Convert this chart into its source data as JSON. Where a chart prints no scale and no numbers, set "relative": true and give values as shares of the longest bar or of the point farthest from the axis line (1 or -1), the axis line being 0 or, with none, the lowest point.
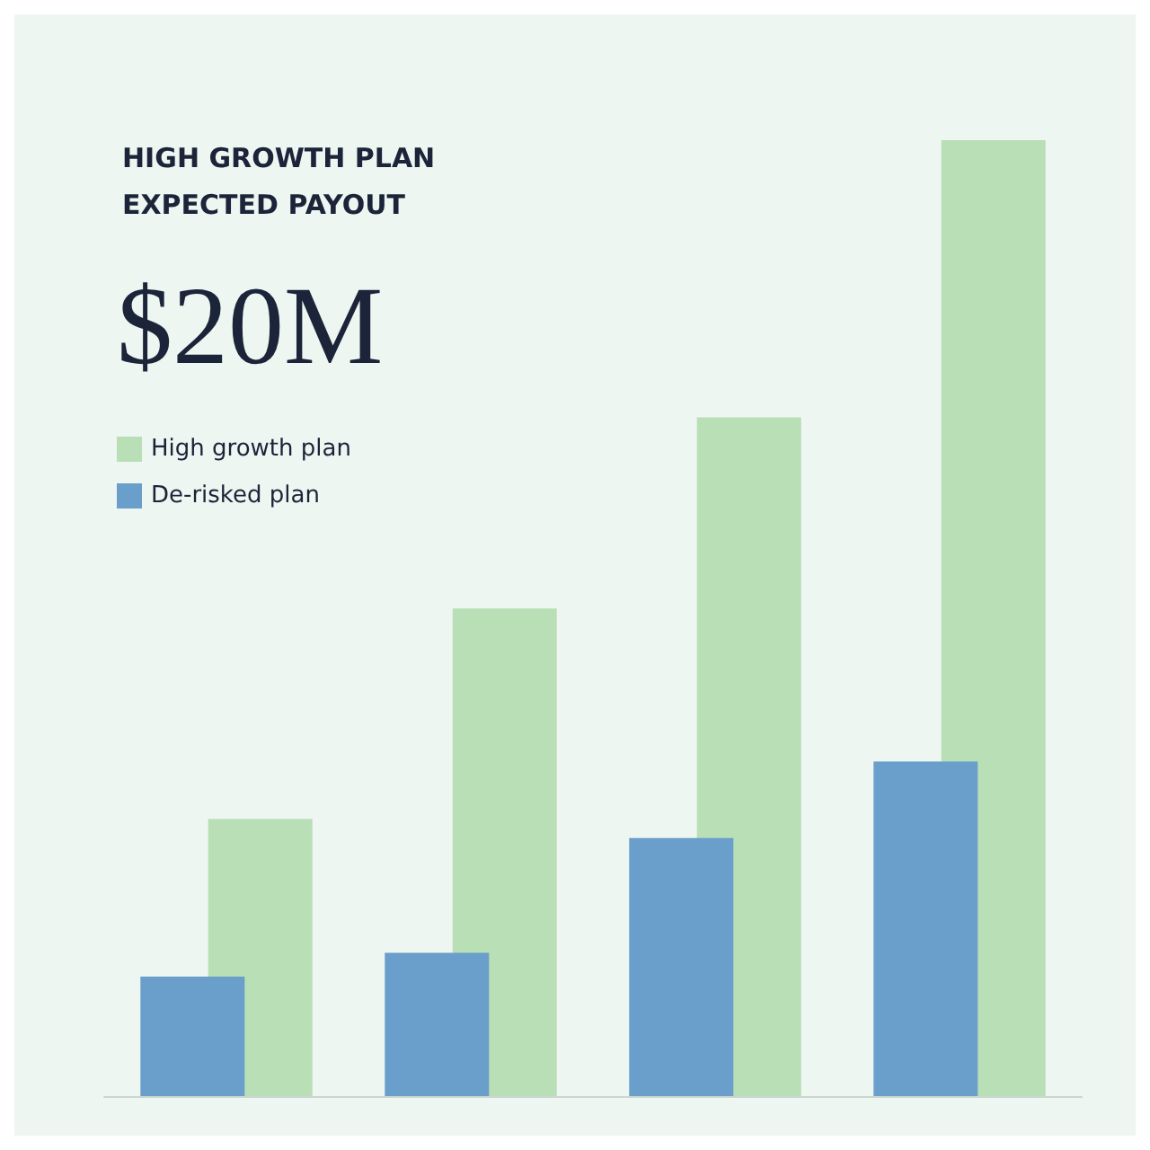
{
  "chart_data": {
    "type": "bar",
    "title": "HIGH GROWTH PLAN\nEXPECTED PAYOUT",
    "subtitle": "$20M",
    "relative": true,
    "categories": [
      null,
      null,
      null,
      null
    ],
    "legend": "top left",
    "series": [
      {
        "name": "High growth plan",
        "color": "#b9dfb6",
        "values": [
          0.29,
          0.51,
          0.71,
          1
        ]
      },
      {
        "name": "De-risked plan",
        "color": "#6b9fcb",
        "values": [
          0.125,
          0.15,
          0.27,
          0.35
        ]
      }
    ]
  }
}
